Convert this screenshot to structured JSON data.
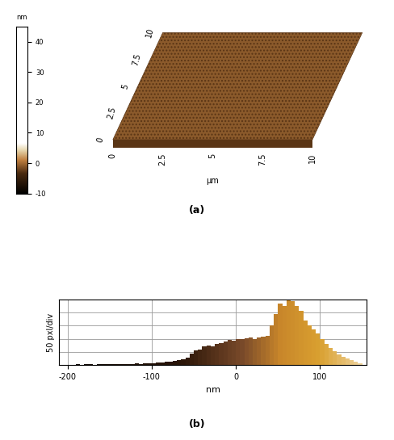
{
  "chart_data": [
    {
      "type": "surface",
      "caption": "(a)",
      "x_label": "µm",
      "xlim": [
        0,
        10
      ],
      "xticks": [
        0,
        2.5,
        5,
        7.5,
        10
      ],
      "ylim": [
        0,
        10
      ],
      "yticks": [
        0,
        2.5,
        5,
        7.5,
        10
      ],
      "colorbar": {
        "label": "nm",
        "range": [
          -10,
          45
        ],
        "ticks": [
          -10,
          0,
          10,
          20,
          30,
          40
        ]
      }
    },
    {
      "type": "histogram",
      "caption": "(b)",
      "x_label": "nm",
      "y_label": "50 pxl/div",
      "bins": [
        -200,
        -195,
        -190,
        -185,
        -180,
        -175,
        -170,
        -165,
        -160,
        -155,
        -150,
        -145,
        -140,
        -135,
        -130,
        -125,
        -120,
        -115,
        -110,
        -105,
        -100,
        -95,
        -90,
        -85,
        -80,
        -75,
        -70,
        -65,
        -60,
        -55,
        -50,
        -45,
        -40,
        -35,
        -30,
        -25,
        -20,
        -15,
        -10,
        -5,
        0,
        5,
        10,
        15,
        20,
        25,
        30,
        35,
        40,
        45,
        50,
        55,
        60,
        65,
        70,
        75,
        80,
        85,
        90,
        95,
        100,
        105,
        110,
        115,
        120,
        125,
        130,
        135,
        140,
        145,
        150
      ],
      "counts": [
        2,
        2,
        3,
        2,
        3,
        3,
        2,
        3,
        4,
        3,
        4,
        3,
        4,
        5,
        4,
        5,
        6,
        5,
        6,
        7,
        8,
        9,
        10,
        12,
        14,
        16,
        18,
        22,
        30,
        45,
        55,
        60,
        70,
        75,
        72,
        80,
        85,
        90,
        95,
        92,
        100,
        98,
        102,
        105,
        100,
        104,
        108,
        112,
        150,
        195,
        235,
        225,
        248,
        242,
        225,
        205,
        170,
        150,
        135,
        120,
        100,
        80,
        65,
        52,
        42,
        32,
        25,
        18,
        12,
        8
      ],
      "xlim": [
        -210,
        155
      ],
      "xticks": [
        -200,
        -100,
        0,
        100
      ],
      "ylim": [
        0,
        250
      ],
      "yticks": [
        0,
        50,
        100,
        150,
        200,
        250
      ],
      "grid": true,
      "tick_labels": "x"
    }
  ]
}
